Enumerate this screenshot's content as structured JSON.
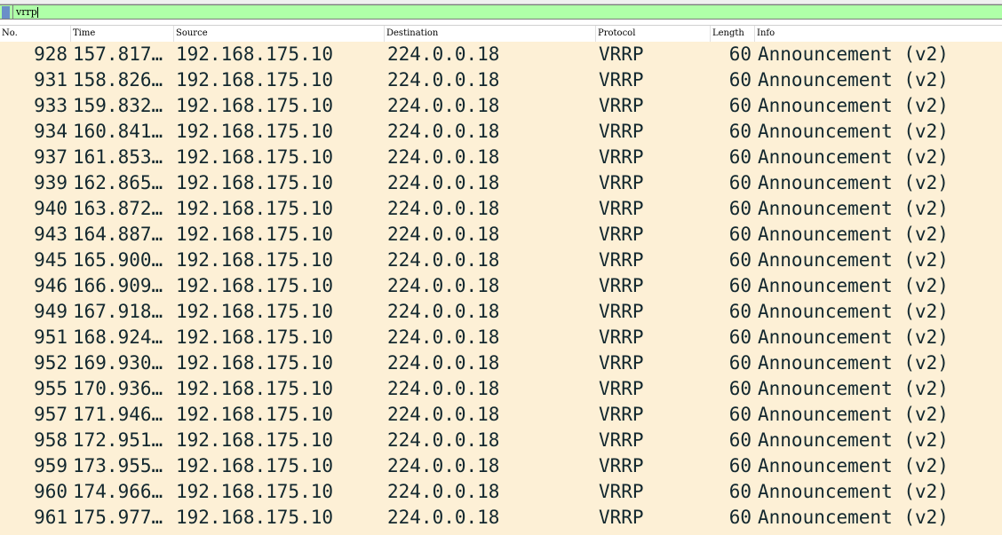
{
  "filter": {
    "value": "vrrp",
    "bookmark_icon": "bookmark-icon",
    "background": "#afffa8"
  },
  "columns": [
    "No.",
    "Time",
    "Source",
    "Destination",
    "Protocol",
    "Length",
    "Info"
  ],
  "row_background": "#fdf0d6",
  "packets": [
    {
      "no": "928",
      "time": "157.817…",
      "src": "192.168.175.10",
      "dst": "224.0.0.18",
      "proto": "VRRP",
      "len": "60",
      "info": "Announcement (v2)"
    },
    {
      "no": "931",
      "time": "158.826…",
      "src": "192.168.175.10",
      "dst": "224.0.0.18",
      "proto": "VRRP",
      "len": "60",
      "info": "Announcement (v2)"
    },
    {
      "no": "933",
      "time": "159.832…",
      "src": "192.168.175.10",
      "dst": "224.0.0.18",
      "proto": "VRRP",
      "len": "60",
      "info": "Announcement (v2)"
    },
    {
      "no": "934",
      "time": "160.841…",
      "src": "192.168.175.10",
      "dst": "224.0.0.18",
      "proto": "VRRP",
      "len": "60",
      "info": "Announcement (v2)"
    },
    {
      "no": "937",
      "time": "161.853…",
      "src": "192.168.175.10",
      "dst": "224.0.0.18",
      "proto": "VRRP",
      "len": "60",
      "info": "Announcement (v2)"
    },
    {
      "no": "939",
      "time": "162.865…",
      "src": "192.168.175.10",
      "dst": "224.0.0.18",
      "proto": "VRRP",
      "len": "60",
      "info": "Announcement (v2)"
    },
    {
      "no": "940",
      "time": "163.872…",
      "src": "192.168.175.10",
      "dst": "224.0.0.18",
      "proto": "VRRP",
      "len": "60",
      "info": "Announcement (v2)"
    },
    {
      "no": "943",
      "time": "164.887…",
      "src": "192.168.175.10",
      "dst": "224.0.0.18",
      "proto": "VRRP",
      "len": "60",
      "info": "Announcement (v2)"
    },
    {
      "no": "945",
      "time": "165.900…",
      "src": "192.168.175.10",
      "dst": "224.0.0.18",
      "proto": "VRRP",
      "len": "60",
      "info": "Announcement (v2)"
    },
    {
      "no": "946",
      "time": "166.909…",
      "src": "192.168.175.10",
      "dst": "224.0.0.18",
      "proto": "VRRP",
      "len": "60",
      "info": "Announcement (v2)"
    },
    {
      "no": "949",
      "time": "167.918…",
      "src": "192.168.175.10",
      "dst": "224.0.0.18",
      "proto": "VRRP",
      "len": "60",
      "info": "Announcement (v2)"
    },
    {
      "no": "951",
      "time": "168.924…",
      "src": "192.168.175.10",
      "dst": "224.0.0.18",
      "proto": "VRRP",
      "len": "60",
      "info": "Announcement (v2)"
    },
    {
      "no": "952",
      "time": "169.930…",
      "src": "192.168.175.10",
      "dst": "224.0.0.18",
      "proto": "VRRP",
      "len": "60",
      "info": "Announcement (v2)"
    },
    {
      "no": "955",
      "time": "170.936…",
      "src": "192.168.175.10",
      "dst": "224.0.0.18",
      "proto": "VRRP",
      "len": "60",
      "info": "Announcement (v2)"
    },
    {
      "no": "957",
      "time": "171.946…",
      "src": "192.168.175.10",
      "dst": "224.0.0.18",
      "proto": "VRRP",
      "len": "60",
      "info": "Announcement (v2)"
    },
    {
      "no": "958",
      "time": "172.951…",
      "src": "192.168.175.10",
      "dst": "224.0.0.18",
      "proto": "VRRP",
      "len": "60",
      "info": "Announcement (v2)"
    },
    {
      "no": "959",
      "time": "173.955…",
      "src": "192.168.175.10",
      "dst": "224.0.0.18",
      "proto": "VRRP",
      "len": "60",
      "info": "Announcement (v2)"
    },
    {
      "no": "960",
      "time": "174.966…",
      "src": "192.168.175.10",
      "dst": "224.0.0.18",
      "proto": "VRRP",
      "len": "60",
      "info": "Announcement (v2)"
    },
    {
      "no": "961",
      "time": "175.977…",
      "src": "192.168.175.10",
      "dst": "224.0.0.18",
      "proto": "VRRP",
      "len": "60",
      "info": "Announcement (v2)"
    }
  ]
}
